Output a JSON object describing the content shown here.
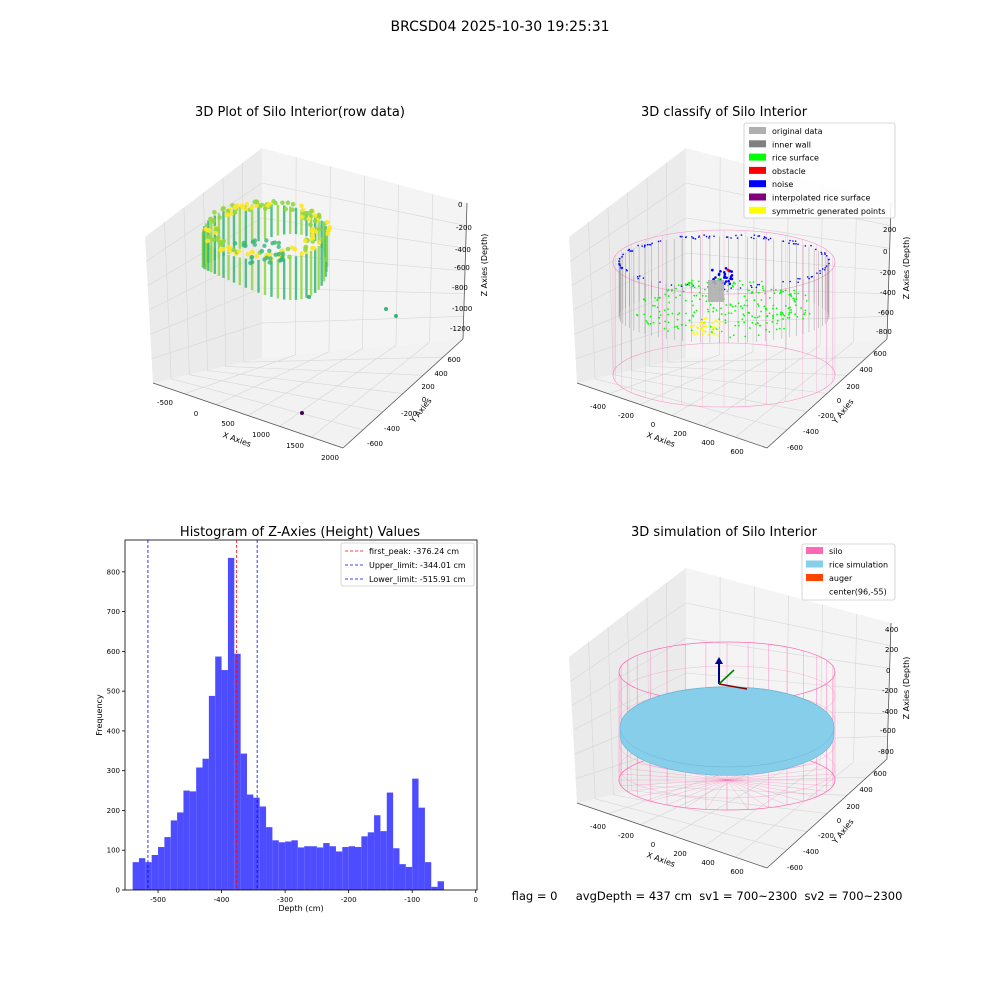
{
  "figure": {
    "suptitle": "BRCSD04 2025-10-30 19:25:31",
    "footer": "flag = 0     avgDepth = 437 cm  sv1 = 700~2300  sv2 = 700~2300"
  },
  "colors": {
    "hist_bar": "#4d4dff",
    "first_peak_line": "#ff0000",
    "limit_lines": "#0000ff",
    "pane": "#f2f2f2",
    "grid": "#d6d6d6",
    "silo": "#ff69b4",
    "rice_simulation": "#87ceeb",
    "auger": "#ff4500",
    "viridis": [
      "#440154",
      "#31688e",
      "#35b779",
      "#90d743",
      "#fde725"
    ]
  },
  "plots": {
    "raw": {
      "title": "3D Plot of Silo Interior(row data)",
      "xlabel": "X Axies",
      "ylabel": "Y Axies",
      "zlabel": "Z Axies (Depth)",
      "xticks": [
        "-500",
        "0",
        "500",
        "1000",
        "1500",
        "2000"
      ],
      "yticks": [
        "-600",
        "-400",
        "-200",
        "0",
        "200",
        "400",
        "600"
      ],
      "zticks": [
        "0",
        "-200",
        "-400",
        "-600",
        "-800",
        "-1000",
        "-1200"
      ]
    },
    "classify": {
      "title": "3D classify of Silo Interior",
      "xlabel": "X Axies",
      "ylabel": "Y Axies",
      "zlabel": "Z Axies (Depth)",
      "xticks": [
        "-400",
        "-200",
        "0",
        "200",
        "400",
        "600"
      ],
      "yticks": [
        "-600",
        "-400",
        "-200",
        "0",
        "200",
        "400",
        "600"
      ],
      "zticks": [
        "200",
        "0",
        "-200",
        "-400",
        "-600",
        "-800"
      ],
      "legend": [
        {
          "label": "original data",
          "color": "#b0b0b0"
        },
        {
          "label": "inner wall",
          "color": "#808080"
        },
        {
          "label": "rice surface",
          "color": "#00ff00"
        },
        {
          "label": "obstacle",
          "color": "#ff0000"
        },
        {
          "label": "noise",
          "color": "#0000ff"
        },
        {
          "label": "interpolated rice surface",
          "color": "#800080"
        },
        {
          "label": "symmetric generated points",
          "color": "#ffff00"
        }
      ]
    },
    "simulation": {
      "title": "3D simulation of Silo Interior",
      "xlabel": "X Axies",
      "ylabel": "Y Axies",
      "zlabel": "Z Axies (Depth)",
      "xticks": [
        "-400",
        "-200",
        "0",
        "200",
        "400",
        "600"
      ],
      "yticks": [
        "-600",
        "-400",
        "-200",
        "0",
        "200",
        "400",
        "600"
      ],
      "zticks": [
        "400",
        "200",
        "0",
        "-200",
        "-400",
        "-600",
        "-800"
      ],
      "legend": [
        {
          "label": "silo",
          "color": "#ff69b4"
        },
        {
          "label": "rice simulation",
          "color": "#87ceeb"
        },
        {
          "label": "auger",
          "color": "#ff4500"
        },
        {
          "label": "center(96,-55)",
          "color": ""
        }
      ]
    }
  },
  "chart_data": {
    "type": "bar",
    "title": "Histogram of Z-Axies (Height) Values",
    "xlabel": "Depth (cm)",
    "ylabel": "Frequency",
    "xlim": [
      -552,
      2
    ],
    "ylim": [
      0,
      880
    ],
    "grid": false,
    "legend_position": "top-right",
    "xticks": [
      -500,
      -400,
      -300,
      -200,
      -100,
      0
    ],
    "yticks": [
      0,
      100,
      200,
      300,
      400,
      500,
      600,
      700,
      800
    ],
    "bins_start": -540,
    "bin_width": 10,
    "values": [
      70,
      80,
      70,
      88,
      108,
      133,
      175,
      195,
      250,
      248,
      308,
      330,
      488,
      587,
      553,
      835,
      594,
      343,
      240,
      232,
      210,
      158,
      125,
      120,
      122,
      125,
      107,
      110,
      110,
      107,
      118,
      110,
      97,
      108,
      110,
      108,
      135,
      145,
      188,
      148,
      245,
      105,
      65,
      58,
      280,
      207,
      70,
      8,
      22
    ],
    "reference_lines": [
      {
        "name": "first_peak: -376.24 cm",
        "x": -376.24,
        "color": "#ff0000",
        "style": "dashed"
      },
      {
        "name": "Upper_limit: -344.01 cm",
        "x": -344.01,
        "color": "#0000ff",
        "style": "dashed"
      },
      {
        "name": "Lower_limit: -515.91 cm",
        "x": -515.91,
        "color": "#0000ff",
        "style": "dashed"
      }
    ]
  }
}
